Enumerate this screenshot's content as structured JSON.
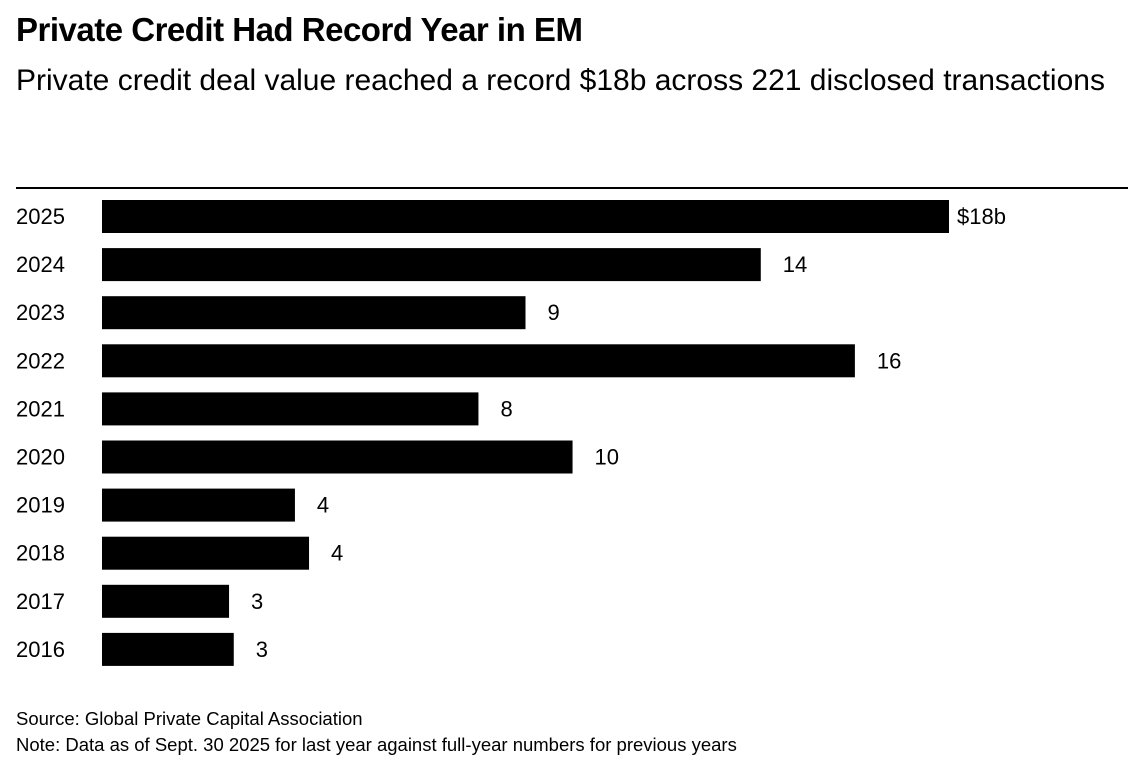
{
  "header": {
    "title": "Private Credit Had Record Year in EM",
    "subtitle": "Private credit deal value reached a record $18b across 221 disclosed transactions"
  },
  "footer": {
    "source": "Source: Global Private Capital Association",
    "note": "Note: Data as of Sept. 30 2025 for last year against full-year numbers for previous years"
  },
  "colors": {
    "bar": "#000000",
    "text": "#000000",
    "background": "#ffffff"
  },
  "chart_data": {
    "type": "bar",
    "orientation": "horizontal",
    "title": "Private Credit Had Record Year in EM",
    "subtitle": "Private credit deal value reached a record $18b across 221 disclosed transactions",
    "categories": [
      "2025",
      "2024",
      "2023",
      "2022",
      "2021",
      "2020",
      "2019",
      "2018",
      "2017",
      "2016"
    ],
    "values": [
      18,
      14,
      9,
      16,
      8,
      10,
      4.1,
      4.4,
      2.7,
      2.8
    ],
    "data_labels": [
      "$18b",
      "14",
      "9",
      "16",
      "8",
      "10",
      "4",
      "4",
      "3",
      "3"
    ],
    "unit": "$b",
    "xlabel": "",
    "ylabel": "",
    "xlim": [
      0,
      18
    ],
    "grid": false,
    "legend": "none"
  }
}
